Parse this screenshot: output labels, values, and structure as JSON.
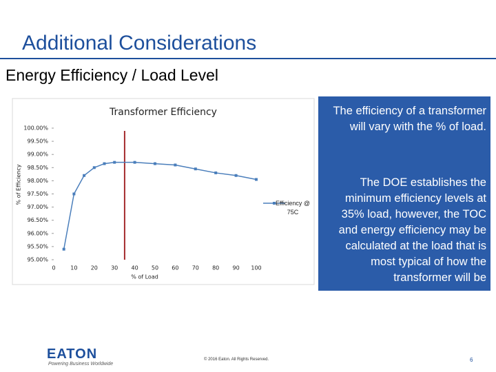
{
  "slide_title": "Additional Considerations",
  "subtitle": "Energy Efficiency / Load Level",
  "notes": [
    "The efficiency of a transformer will vary with the % of load.",
    "The DOE establishes the minimum efficiency levels at 35% load, however, the TOC and energy efficiency may be calculated at the load that is most typical of how the transformer will be"
  ],
  "logo": "EATON",
  "logo_tagline": "Powering Business Worldwide",
  "copyright": "© 2016 Eaton. All Rights Reserved.",
  "page_number": "6",
  "chart_data": {
    "type": "line",
    "title": "Transformer Efficiency",
    "x_label": "% of Load",
    "y_label": "% of Efficiency",
    "x": [
      5,
      10,
      15,
      20,
      25,
      30,
      40,
      50,
      60,
      70,
      80,
      90,
      100
    ],
    "series": [
      {
        "name": "Efficiency @ 75C",
        "color": "#4a7ebb",
        "values": [
          95.4,
          97.5,
          98.2,
          98.5,
          98.65,
          98.7,
          98.7,
          98.65,
          98.6,
          98.45,
          98.3,
          98.2,
          98.05
        ]
      }
    ],
    "xlim": [
      0,
      100
    ],
    "xticks": [
      0,
      10,
      20,
      30,
      40,
      50,
      60,
      70,
      80,
      90,
      100
    ],
    "ylim": [
      95,
      100
    ],
    "yticks": [
      {
        "value": 95,
        "label": "95.00%"
      },
      {
        "value": 95.5,
        "label": "95.50%"
      },
      {
        "value": 96,
        "label": "96.00%"
      },
      {
        "value": 96.5,
        "label": "96.50%"
      },
      {
        "value": 97,
        "label": "97.00%"
      },
      {
        "value": 97.5,
        "label": "97.50%"
      },
      {
        "value": 98,
        "label": "98.00%"
      },
      {
        "value": 98.5,
        "label": "98.50%"
      },
      {
        "value": 99,
        "label": "99.00%"
      },
      {
        "value": 99.5,
        "label": "99.50%"
      },
      {
        "value": 100,
        "label": "100.00%"
      }
    ],
    "reference_x": 35,
    "reference_color": "#a3282b",
    "grid": false,
    "legend": "right"
  }
}
